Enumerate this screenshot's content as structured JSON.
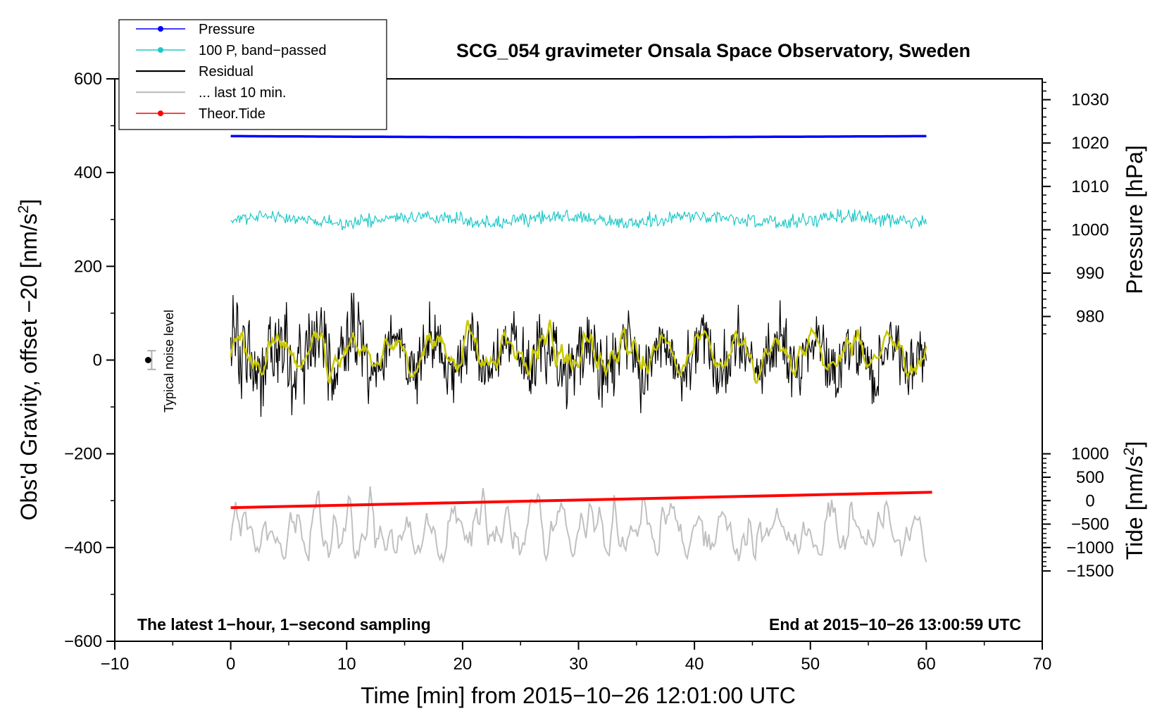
{
  "chart_data": {
    "type": "line",
    "title": "SCG_054 gravimeter Onsala Space Observatory, Sweden",
    "xlabel": "Time [min] from 2015−10−26 12:01:00 UTC",
    "ylabel": "Obs'd Gravity, offset −20 [nm/s",
    "ylabel_sup": "2",
    "ylabel_close": "]",
    "xlim": [
      -10,
      70
    ],
    "ylim": [
      -600,
      600
    ],
    "x_ticks": [
      -10,
      0,
      10,
      20,
      30,
      40,
      50,
      60,
      70
    ],
    "x_tick_labels": [
      "−10",
      "0",
      "10",
      "20",
      "30",
      "40",
      "50",
      "60",
      "70"
    ],
    "y_ticks": [
      -600,
      -400,
      -200,
      0,
      200,
      400,
      600
    ],
    "y_tick_labels": [
      "−600",
      "−400",
      "−200",
      "0",
      "200",
      "400",
      "600"
    ],
    "pressure_axis": {
      "label": "Pressure [hPa]",
      "ticks": [
        980,
        990,
        1000,
        1010,
        1020,
        1030
      ],
      "tick_labels": [
        "980",
        "990",
        "1000",
        "1010",
        "1020",
        "1030"
      ],
      "gravity_per_hpa": 9.25,
      "gravity_at_1000": 278
    },
    "tide_axis": {
      "label": "Tide [nm/s",
      "label_sup": "2",
      "label_close": "]",
      "ticks": [
        -1500,
        -1000,
        -500,
        0,
        500,
        1000
      ],
      "tick_labels": [
        "−1500",
        "−1000",
        "−500",
        "0",
        "500",
        "1000"
      ],
      "gravity_per_unit": 0.1,
      "gravity_at_0": -300
    },
    "legend": {
      "position": "top-left",
      "entries": [
        {
          "label": "Pressure",
          "color": "#0000ff",
          "marker": true
        },
        {
          "label": "100 P, band−passed",
          "color": "#20c8c8",
          "marker": true
        },
        {
          "label": "Residual",
          "color": "#000000",
          "marker": false
        },
        {
          "label": "... last 10 min.",
          "color": "#c0c0c0",
          "marker": false
        },
        {
          "label": "Theor.Tide",
          "color": "#ff0000",
          "marker": true
        }
      ]
    },
    "series": [
      {
        "name": "Pressure",
        "color": "#0000ff",
        "x_range": [
          0,
          60
        ],
        "level": 1021.6,
        "shape": "nearly-flat"
      },
      {
        "name": "100 P, band-passed",
        "color": "#20c8c8",
        "x_range": [
          0,
          60
        ],
        "center": 300,
        "amplitude": 22
      },
      {
        "name": "Residual",
        "color": "#000000",
        "x_range": [
          0,
          60
        ],
        "center": 10,
        "amplitude": 120
      },
      {
        "name": "Residual smoothed",
        "color": "#c8c800",
        "x_range": [
          0,
          60
        ],
        "center": 15,
        "amplitude": 55
      },
      {
        "name": "... last 10 min.",
        "color": "#c0c0c0",
        "x_range": [
          0,
          60
        ],
        "center": -360,
        "amplitude": 85
      },
      {
        "name": "Theor.Tide",
        "color": "#ff0000",
        "x_range": [
          0,
          60.5
        ],
        "start": -315,
        "end": -282
      }
    ],
    "noise_marker": {
      "x": -7,
      "y": 0,
      "error": 20,
      "label": "Typical noise level"
    },
    "note_left": "The latest 1−hour, 1−second sampling",
    "note_right": "End at 2015−10−26 13:00:59 UTC"
  }
}
